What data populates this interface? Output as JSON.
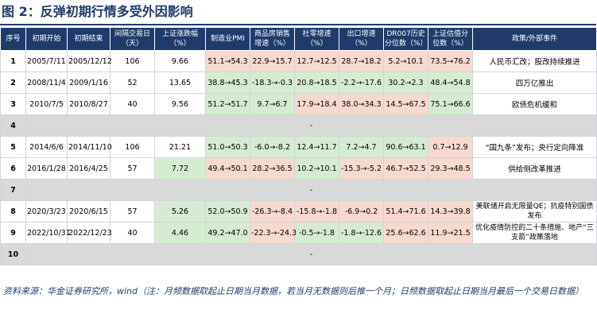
{
  "title": "图 2：反弹初期行情多受外因影响",
  "headers": [
    "序号",
    "初期开始",
    "初期结束",
    "间隔交易日（天）",
    "上证涨跌幅（%）",
    "制造业PMI",
    "商品房销售增速（%）",
    "社零增速（%）",
    "出口增速（%）",
    "DR007历史分位数（%）",
    "上证估值分位数（%）",
    "政策/外部事件"
  ],
  "rows": [
    {
      "no": "1",
      "start": "2005/7/11",
      "end": "2005/12/12",
      "days": "106",
      "chg": "9.66",
      "pmi": "51.1→54.3",
      "house": "22.9→15.7",
      "retail": "12.7→12.5",
      "export": "28.7→18.2",
      "dr007": "5.2→10.1",
      "pe": "73.5→76.2",
      "event": "人民币汇改；股改持续推进",
      "c": [
        "",
        "",
        "",
        "",
        "",
        "red",
        "red",
        "red",
        "red",
        "red",
        "red",
        ""
      ]
    },
    {
      "no": "2",
      "start": "2008/11/4",
      "end": "2009/1/16",
      "days": "52",
      "chg": "13.65",
      "pmi": "38.8→45.3",
      "house": "-18.3→-0.3",
      "retail": "20.8→18.5",
      "export": "-2.2→-17.6",
      "dr007": "30.2→2.3",
      "pe": "48.4→54.8",
      "event": "四万亿推出",
      "c": [
        "",
        "",
        "",
        "",
        "",
        "green",
        "green",
        "green",
        "green",
        "green",
        "green",
        ""
      ]
    },
    {
      "no": "3",
      "start": "2010/7/5",
      "end": "2010/8/27",
      "days": "40",
      "chg": "9.56",
      "pmi": "51.2→51.7",
      "house": "9.7→6.7",
      "retail": "17.9→18.4",
      "export": "38.0→34.3",
      "dr007": "14.5→67.5",
      "pe": "75.1→66.6",
      "event": "欧债危机缓和",
      "c": [
        "",
        "",
        "",
        "",
        "",
        "green",
        "green",
        "red",
        "red",
        "red",
        "green",
        ""
      ]
    },
    {
      "no": "4",
      "blank": "-"
    },
    {
      "no": "5",
      "start": "2014/6/6",
      "end": "2014/11/10",
      "days": "106",
      "chg": "21.21",
      "pmi": "51.0→50.3",
      "house": "-6.0→-8.2",
      "retail": "12.4→11.7",
      "export": "7.2→4.7",
      "dr007": "90.6→63.1",
      "pe": "0.7→12.9",
      "event": "“国九条”发布；央行定向降准",
      "c": [
        "",
        "",
        "",
        "",
        "",
        "green",
        "green",
        "green",
        "green",
        "green",
        "red",
        ""
      ]
    },
    {
      "no": "6",
      "start": "2016/1/28",
      "end": "2016/4/25",
      "days": "57",
      "chg": "7.72",
      "pmi": "49.4→50.1",
      "house": "28.2→36.5",
      "retail": "10.2→10.1",
      "export": "-15.3→-5.2",
      "dr007": "46.7→52.5",
      "pe": "29.3→48.5",
      "event": "供给侧改革推进",
      "c": [
        "",
        "",
        "",
        "",
        "green",
        "red",
        "red",
        "green",
        "red",
        "red",
        "red",
        ""
      ]
    },
    {
      "no": "7",
      "blank": "-"
    },
    {
      "no": "8",
      "start": "2020/3/23",
      "end": "2020/6/15",
      "days": "57",
      "chg": "5.26",
      "pmi": "52.0→50.9",
      "house": "-26.3→-8.4",
      "retail": "-15.8→-1.8",
      "export": "-6.9→0.2",
      "dr007": "51.4→71.6",
      "pe": "14.3→39.8",
      "event": "美联储开启无限量QE；抗疫特别国债发布",
      "wrap": true,
      "c": [
        "",
        "",
        "",
        "",
        "green",
        "green",
        "red",
        "red",
        "red",
        "red",
        "red",
        ""
      ]
    },
    {
      "no": "9",
      "start": "2022/10/31",
      "end": "2022/12/23",
      "days": "40",
      "chg": "4.46",
      "pmi": "49.2→47.0",
      "house": "-22.3→-24.3",
      "retail": "-0.5→-1.8",
      "export": "-1.8→-12.6",
      "dr007": "25.6→62.6",
      "pe": "11.9→21.5",
      "event": "优化疫情防控的二十条措施、地产“三支箭”政策落地",
      "wrap": true,
      "c": [
        "",
        "",
        "",
        "",
        "green",
        "green",
        "red",
        "green",
        "green",
        "red",
        "red",
        ""
      ]
    },
    {
      "no": "10",
      "blank": "-"
    }
  ],
  "source": "资料来源：华金证券研究所，wind（注：月频数据取起止日期当月数据，若当月无数据则后推一个月；日频数据取起止日期当月最后一个交易日数据）"
}
